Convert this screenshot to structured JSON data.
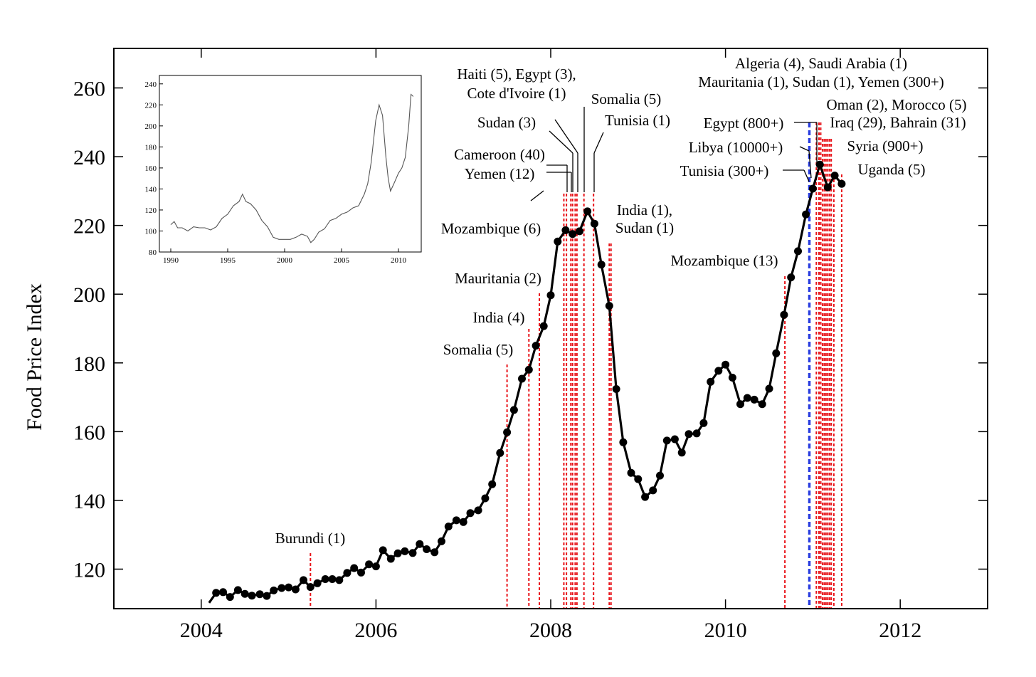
{
  "chart_data": [
    {
      "type": "line",
      "title": "",
      "xlabel": "",
      "ylabel": "Food Price Index",
      "xlim": [
        2003.0,
        2013.0
      ],
      "ylim": [
        108.5,
        271.5
      ],
      "x_ticks": [
        2004,
        2006,
        2008,
        2010,
        2012
      ],
      "y_ticks": [
        120,
        140,
        160,
        180,
        200,
        220,
        240,
        260
      ],
      "grid": false,
      "legend": "none",
      "series": [
        {
          "color": "#000000",
          "x": [
            2004.17,
            2004.25,
            2004.33,
            2004.42,
            2004.5,
            2004.58,
            2004.67,
            2004.75,
            2004.83,
            2004.92,
            2005.0,
            2005.08,
            2005.17,
            2005.25,
            2005.33,
            2005.42,
            2005.5,
            2005.58,
            2005.67,
            2005.75,
            2005.83,
            2005.92,
            2006.0,
            2006.08,
            2006.17,
            2006.25,
            2006.33,
            2006.42,
            2006.5,
            2006.58,
            2006.67,
            2006.75,
            2006.83,
            2006.92,
            2007.0,
            2007.08,
            2007.17,
            2007.25,
            2007.33,
            2007.42,
            2007.5,
            2007.58,
            2007.67,
            2007.75,
            2007.83,
            2007.92,
            2008.0,
            2008.08,
            2008.17,
            2008.25,
            2008.33,
            2008.42,
            2008.5,
            2008.58,
            2008.67,
            2008.75,
            2008.83,
            2008.92,
            2009.0,
            2009.08,
            2009.17,
            2009.25,
            2009.33,
            2009.42,
            2009.5,
            2009.58,
            2009.67,
            2009.75,
            2009.83,
            2009.92,
            2010.0,
            2010.08,
            2010.17,
            2010.25,
            2010.33,
            2010.42,
            2010.5,
            2010.58,
            2010.67,
            2010.75,
            2010.83,
            2010.92,
            2011.0,
            2011.08,
            2011.17,
            2011.25,
            2011.33
          ],
          "y": [
            113.1,
            113.3,
            111.9,
            113.9,
            112.8,
            112.3,
            112.7,
            112.2,
            113.8,
            114.5,
            114.7,
            114.1,
            116.8,
            114.8,
            115.9,
            117.1,
            117.1,
            116.8,
            118.9,
            120.3,
            119.0,
            121.4,
            120.8,
            125.5,
            123.0,
            124.6,
            125.2,
            124.7,
            127.3,
            125.8,
            124.9,
            128.1,
            132.4,
            134.2,
            133.7,
            136.3,
            137.1,
            140.6,
            144.7,
            153.8,
            159.8,
            166.3,
            175.4,
            178.0,
            185.0,
            190.7,
            199.7,
            215.3,
            218.6,
            217.5,
            218.3,
            224.1,
            220.5,
            208.6,
            196.6,
            172.4,
            156.9,
            148.0,
            146.2,
            141.0,
            142.9,
            147.2,
            157.4,
            157.8,
            153.9,
            159.3,
            159.5,
            162.5,
            174.5,
            177.7,
            179.5,
            175.7,
            168.0,
            169.8,
            169.3,
            168.0,
            172.5,
            182.8,
            194.0,
            204.9,
            212.5,
            223.2,
            230.7,
            237.7,
            231.1,
            234.5,
            232.1
          ]
        }
      ],
      "annotations": [
        {
          "lines": [
            "Burundi (1)"
          ]
        },
        {
          "lines": [
            "Somalia (5)"
          ]
        },
        {
          "lines": [
            "India (4)"
          ]
        },
        {
          "lines": [
            "Mauritania (2)"
          ]
        },
        {
          "lines": [
            "Mozambique (6)"
          ]
        },
        {
          "lines": [
            "Cameroon (40)"
          ]
        },
        {
          "lines": [
            "Yemen (12)"
          ]
        },
        {
          "lines": [
            "Sudan (3)"
          ]
        },
        {
          "lines": [
            "Haiti (5), Egypt (3),",
            "Cote d'Ivoire (1)"
          ]
        },
        {
          "lines": [
            "Somalia (5)"
          ]
        },
        {
          "lines": [
            "Tunisia (1)"
          ]
        },
        {
          "lines": [
            "India (1),",
            "Sudan (1)"
          ]
        },
        {
          "lines": [
            "Mozambique (13)"
          ]
        },
        {
          "lines": [
            "Tunisia (300+)"
          ]
        },
        {
          "lines": [
            "Libya (10000+)"
          ]
        },
        {
          "lines": [
            "Egypt (800+)"
          ]
        },
        {
          "lines": [
            "Algeria (4), Saudi Arabia (1)"
          ]
        },
        {
          "lines": [
            "Mauritania (1), Sudan (1), Yemen (300+)"
          ]
        },
        {
          "lines": [
            "Oman (2), Morocco (5)"
          ]
        },
        {
          "lines": [
            "Iraq (29), Bahrain (31)"
          ]
        },
        {
          "lines": [
            "Syria (900+)"
          ]
        },
        {
          "lines": [
            "Uganda (5)"
          ]
        }
      ],
      "event_lines": {
        "red": [
          2005.25,
          2007.5,
          2007.75,
          2007.87,
          2008.15,
          2008.18,
          2008.23,
          2008.25,
          2008.28,
          2008.3,
          2008.38,
          2008.49,
          2008.67,
          2008.69,
          2010.68,
          2011.04,
          2011.07,
          2011.09,
          2011.11,
          2011.13,
          2011.15,
          2011.17,
          2011.19,
          2011.21,
          2011.24,
          2011.33
        ],
        "blue": [
          2010.96
        ]
      }
    },
    {
      "type": "line",
      "title": "",
      "xlim": [
        1989,
        2012
      ],
      "ylim": [
        80,
        248
      ],
      "x_ticks": [
        1990,
        1995,
        2000,
        2005,
        2010
      ],
      "y_ticks": [
        80,
        100,
        120,
        140,
        160,
        180,
        200,
        220,
        240
      ],
      "series": [
        {
          "color": "#555555",
          "x": [
            1990.0,
            1990.3,
            1990.6,
            1991.0,
            1991.5,
            1992.0,
            1992.5,
            1993.0,
            1993.5,
            1994.0,
            1994.5,
            1995.0,
            1995.5,
            1996.0,
            1996.3,
            1996.6,
            1997.0,
            1997.5,
            1998.0,
            1998.5,
            1999.0,
            1999.5,
            2000.0,
            2000.5,
            2001.0,
            2001.5,
            2002.0,
            2002.3,
            2002.6,
            2003.0,
            2003.5,
            2004.0,
            2004.5,
            2005.0,
            2005.5,
            2006.0,
            2006.5,
            2007.0,
            2007.3,
            2007.6,
            2008.0,
            2008.3,
            2008.6,
            2008.9,
            2009.1,
            2009.3,
            2009.6,
            2010.0,
            2010.3,
            2010.6,
            2010.9,
            2011.1,
            2011.3
          ],
          "y": [
            106,
            109,
            103,
            103,
            100,
            104,
            103,
            103,
            101,
            104,
            112,
            116,
            124,
            128,
            135,
            128,
            126,
            120,
            110,
            104,
            94,
            92,
            92,
            92,
            94,
            97,
            95,
            89,
            92,
            99,
            102,
            110,
            112,
            116,
            118,
            122,
            124,
            135,
            145,
            165,
            205,
            220,
            210,
            170,
            150,
            138,
            145,
            155,
            160,
            170,
            200,
            230,
            228
          ]
        }
      ]
    }
  ]
}
